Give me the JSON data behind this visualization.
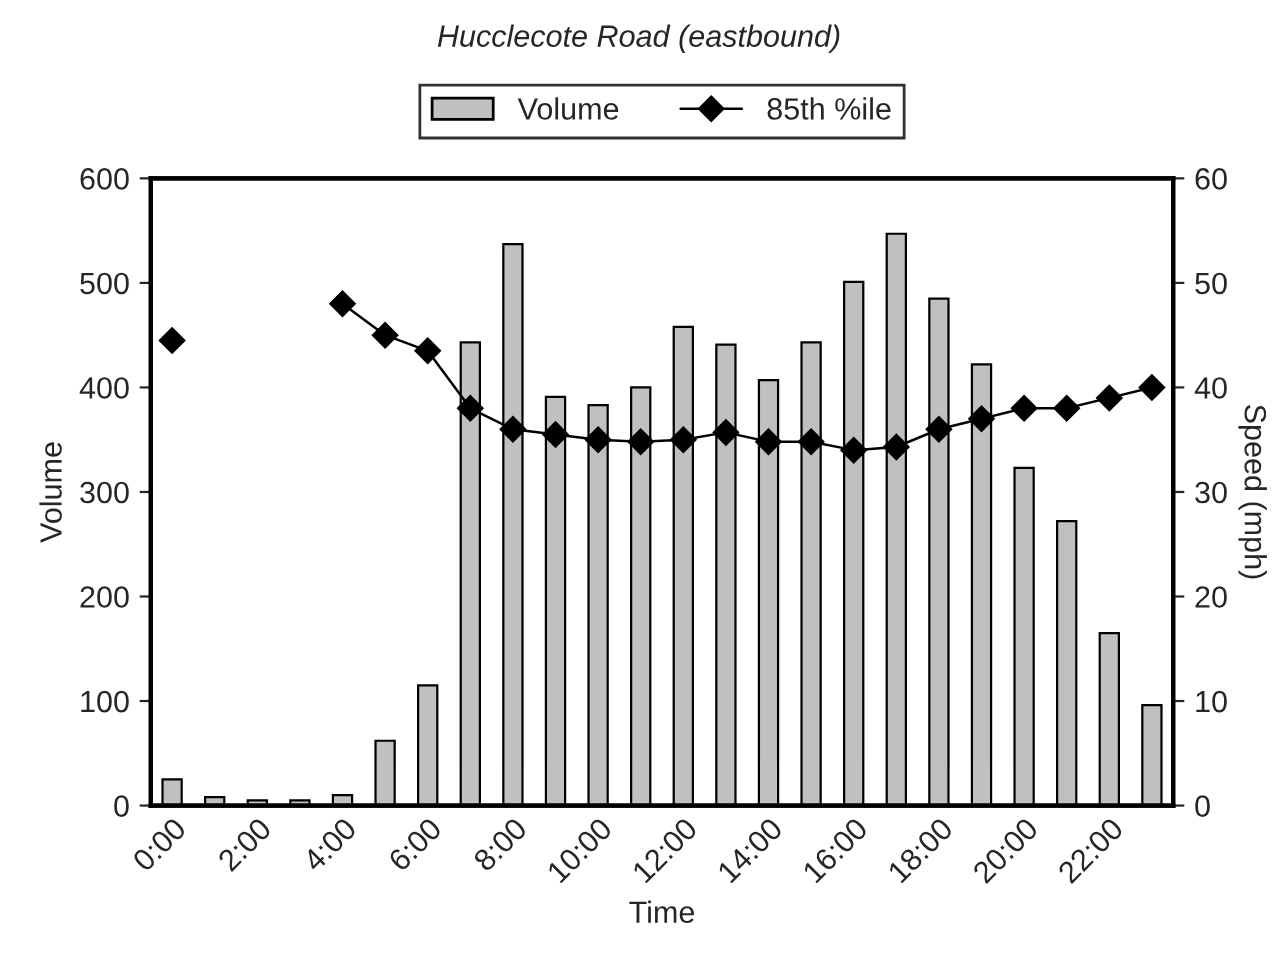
{
  "chart_data": {
    "type": "bar",
    "title": "Hucclecote Road (eastbound)",
    "xlabel": "Time",
    "ylabel": "Volume",
    "y2label": "Speed (mph)",
    "categories": [
      "0:00",
      null,
      "2:00",
      null,
      "4:00",
      null,
      "6:00",
      null,
      "8:00",
      null,
      "10:00",
      null,
      "12:00",
      null,
      "14:00",
      null,
      "16:00",
      null,
      "18:00",
      null,
      "20:00",
      null,
      "22:00",
      null
    ],
    "series": [
      {
        "name": "Volume",
        "color": "#c0c0c0",
        "values": [
          25,
          8,
          5,
          5,
          10,
          62,
          115,
          443,
          537,
          391,
          383,
          400,
          458,
          441,
          407,
          443,
          501,
          547,
          485,
          422,
          323,
          272,
          165,
          96
        ]
      },
      {
        "name": "85th %ile",
        "type": "line",
        "axis": "y2",
        "color": "#000000",
        "marker": "diamond",
        "values": [
          44.5,
          null,
          null,
          null,
          48,
          45,
          43.5,
          38,
          36,
          35.5,
          35,
          34.8,
          35,
          35.7,
          34.8,
          34.8,
          34,
          34.3,
          36,
          37,
          38,
          38,
          39,
          40
        ]
      }
    ],
    "ylim": [
      0,
      600
    ],
    "yticks": [
      0,
      100,
      200,
      300,
      400,
      500,
      600
    ],
    "y2lim": [
      0,
      60
    ],
    "y2ticks": [
      0,
      10,
      20,
      30,
      40,
      50,
      60
    ],
    "grid": false,
    "legend": "top"
  }
}
